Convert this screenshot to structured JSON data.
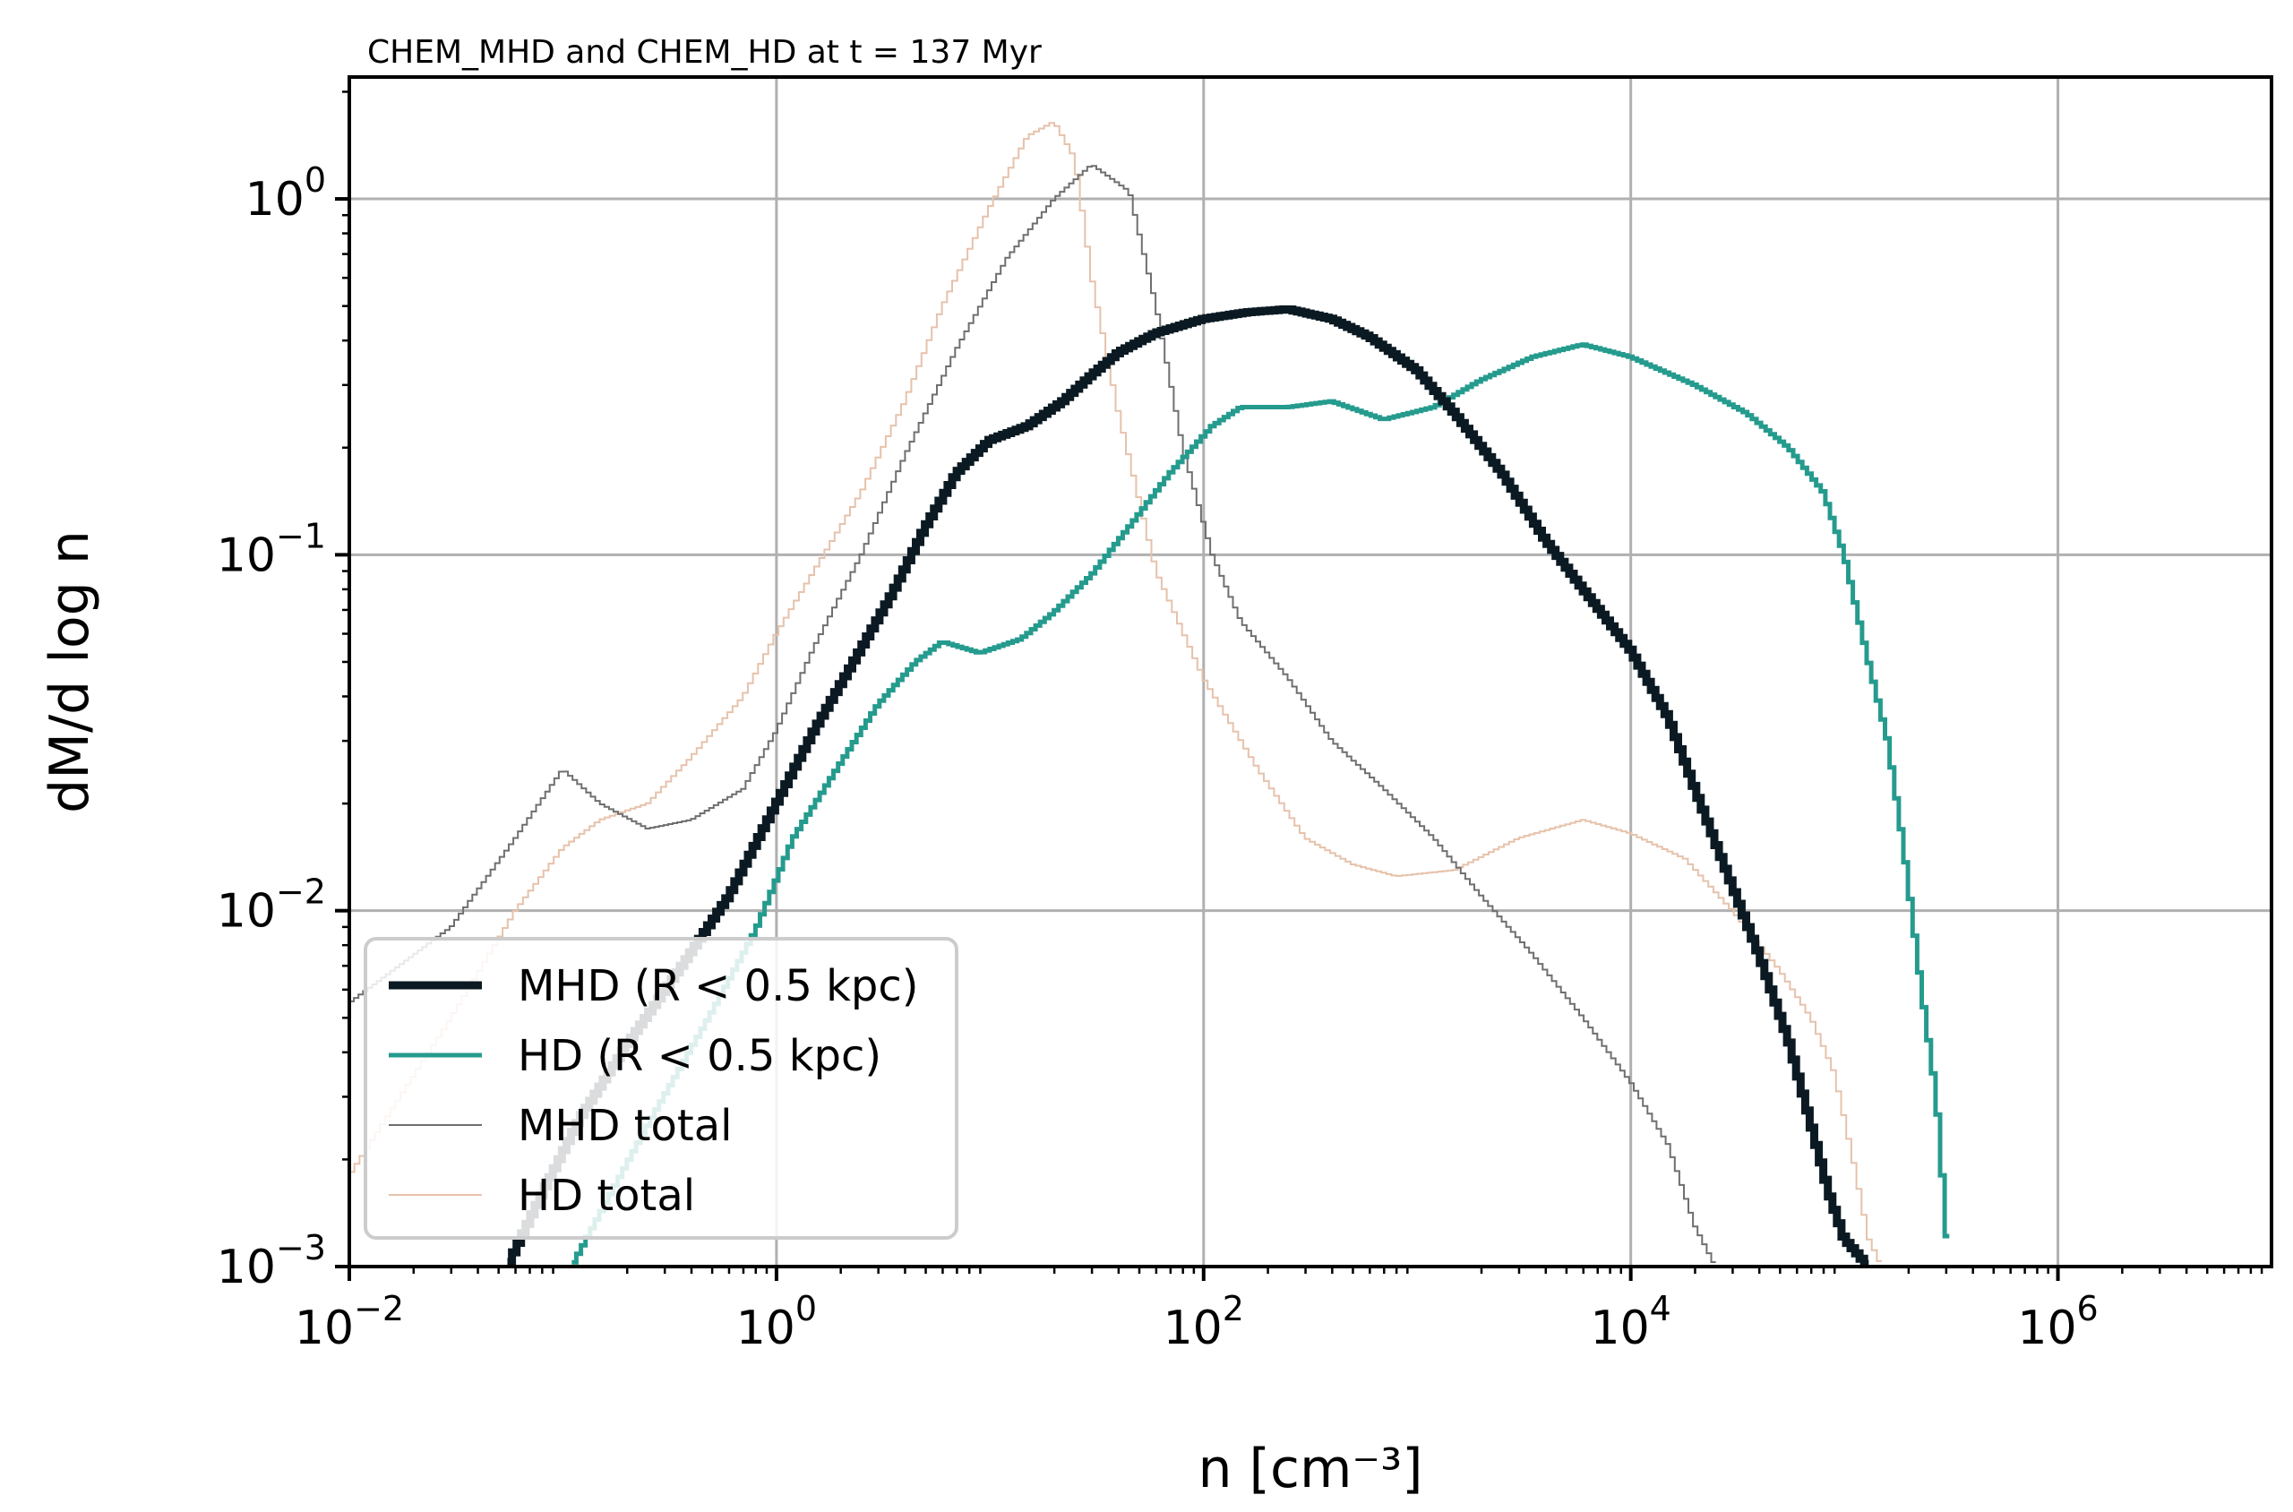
{
  "chart_data": {
    "type": "line",
    "title": "CHEM_MHD and CHEM_HD at t = 137 Myr",
    "xlabel": "n [cm⁻³]",
    "ylabel": "dM/d log n",
    "xscale": "log",
    "yscale": "log",
    "xlim": [
      0.01,
      10000000
    ],
    "ylim": [
      0.001,
      2.2
    ],
    "grid": true,
    "legend_position": "bottom-left",
    "x_ticks": [
      {
        "value": 0.01,
        "base": "10",
        "exp": "−2"
      },
      {
        "value": 1,
        "base": "10",
        "exp": "0"
      },
      {
        "value": 100,
        "base": "10",
        "exp": "2"
      },
      {
        "value": 10000,
        "base": "10",
        "exp": "4"
      },
      {
        "value": 1000000,
        "base": "10",
        "exp": "6"
      }
    ],
    "y_ticks": [
      {
        "value": 1,
        "base": "10",
        "exp": "0"
      },
      {
        "value": 0.1,
        "base": "10",
        "exp": "−1"
      },
      {
        "value": 0.01,
        "base": "10",
        "exp": "−2"
      },
      {
        "value": 0.001,
        "base": "10",
        "exp": "−3"
      }
    ],
    "series": [
      {
        "name": "MHD (R < 0.5 kpc)",
        "color": "#0b1a22",
        "points": [
          [
            0.055,
            0.001
          ],
          [
            0.08,
            0.0016
          ],
          [
            0.12,
            0.0026
          ],
          [
            0.2,
            0.0042
          ],
          [
            0.35,
            0.0068
          ],
          [
            0.6,
            0.011
          ],
          [
            1.0,
            0.02
          ],
          [
            1.5,
            0.032
          ],
          [
            2.3,
            0.05
          ],
          [
            3.5,
            0.078
          ],
          [
            5,
            0.12
          ],
          [
            7,
            0.17
          ],
          [
            10,
            0.21
          ],
          [
            15,
            0.23
          ],
          [
            22,
            0.27
          ],
          [
            30,
            0.32
          ],
          [
            40,
            0.37
          ],
          [
            60,
            0.42
          ],
          [
            100,
            0.46
          ],
          [
            160,
            0.48
          ],
          [
            250,
            0.49
          ],
          [
            400,
            0.46
          ],
          [
            600,
            0.41
          ],
          [
            1000,
            0.33
          ],
          [
            1500,
            0.25
          ],
          [
            2500,
            0.17
          ],
          [
            4000,
            0.11
          ],
          [
            6000,
            0.08
          ],
          [
            10000,
            0.054
          ],
          [
            15000,
            0.035
          ],
          [
            20000,
            0.022
          ],
          [
            28000,
            0.013
          ],
          [
            40000,
            0.0075
          ],
          [
            55000,
            0.0043
          ],
          [
            70000,
            0.0025
          ],
          [
            85000,
            0.0016
          ],
          [
            100000,
            0.0012
          ],
          [
            130000,
            0.001
          ]
        ]
      },
      {
        "name": "HD (R < 0.5 kpc)",
        "color": "#259b8e",
        "points": [
          [
            0.11,
            0.001
          ],
          [
            0.25,
            0.0025
          ],
          [
            0.5,
            0.0052
          ],
          [
            0.8,
            0.0088
          ],
          [
            1.2,
            0.016
          ],
          [
            2,
            0.026
          ],
          [
            3,
            0.038
          ],
          [
            4.5,
            0.05
          ],
          [
            6,
            0.057
          ],
          [
            9,
            0.053
          ],
          [
            14,
            0.058
          ],
          [
            20,
            0.069
          ],
          [
            30,
            0.088
          ],
          [
            45,
            0.12
          ],
          [
            70,
            0.17
          ],
          [
            110,
            0.23
          ],
          [
            150,
            0.26
          ],
          [
            250,
            0.26
          ],
          [
            400,
            0.27
          ],
          [
            700,
            0.24
          ],
          [
            1200,
            0.26
          ],
          [
            2000,
            0.31
          ],
          [
            3500,
            0.36
          ],
          [
            6000,
            0.39
          ],
          [
            10000,
            0.36
          ],
          [
            20000,
            0.3
          ],
          [
            35000,
            0.25
          ],
          [
            55000,
            0.2
          ],
          [
            80000,
            0.15
          ],
          [
            100000,
            0.1
          ],
          [
            130000,
            0.05
          ],
          [
            160000,
            0.03
          ],
          [
            190000,
            0.015
          ],
          [
            230000,
            0.006
          ],
          [
            270000,
            0.003
          ],
          [
            310000,
            0.001
          ]
        ]
      },
      {
        "name": "MHD total",
        "color": "#6f6f6f",
        "points": [
          [
            0.01,
            0.0055
          ],
          [
            0.03,
            0.009
          ],
          [
            0.06,
            0.016
          ],
          [
            0.1,
            0.025
          ],
          [
            0.15,
            0.02
          ],
          [
            0.25,
            0.017
          ],
          [
            0.4,
            0.018
          ],
          [
            0.7,
            0.022
          ],
          [
            1,
            0.032
          ],
          [
            1.5,
            0.055
          ],
          [
            2.5,
            0.1
          ],
          [
            4,
            0.19
          ],
          [
            7,
            0.38
          ],
          [
            12,
            0.68
          ],
          [
            20,
            1.0
          ],
          [
            30,
            1.25
          ],
          [
            45,
            1.05
          ],
          [
            60,
            0.5
          ],
          [
            80,
            0.2
          ],
          [
            110,
            0.1
          ],
          [
            150,
            0.065
          ],
          [
            250,
            0.045
          ],
          [
            400,
            0.03
          ],
          [
            700,
            0.022
          ],
          [
            1200,
            0.016
          ],
          [
            2000,
            0.011
          ],
          [
            3500,
            0.0075
          ],
          [
            6000,
            0.005
          ],
          [
            10000,
            0.0033
          ],
          [
            15000,
            0.0022
          ],
          [
            20000,
            0.0013
          ],
          [
            25000,
            0.001
          ]
        ]
      },
      {
        "name": "HD total",
        "color": "#e6c2ab",
        "points": [
          [
            0.01,
            0.0018
          ],
          [
            0.03,
            0.005
          ],
          [
            0.06,
            0.01
          ],
          [
            0.1,
            0.015
          ],
          [
            0.15,
            0.018
          ],
          [
            0.25,
            0.02
          ],
          [
            0.4,
            0.027
          ],
          [
            0.7,
            0.04
          ],
          [
            1,
            0.06
          ],
          [
            1.5,
            0.09
          ],
          [
            2.5,
            0.15
          ],
          [
            4,
            0.27
          ],
          [
            6,
            0.5
          ],
          [
            10,
            0.95
          ],
          [
            15,
            1.5
          ],
          [
            20,
            1.65
          ],
          [
            25,
            1.3
          ],
          [
            30,
            0.6
          ],
          [
            40,
            0.25
          ],
          [
            60,
            0.09
          ],
          [
            100,
            0.045
          ],
          [
            180,
            0.025
          ],
          [
            300,
            0.016
          ],
          [
            500,
            0.0135
          ],
          [
            800,
            0.0125
          ],
          [
            1500,
            0.013
          ],
          [
            3000,
            0.016
          ],
          [
            6000,
            0.018
          ],
          [
            10000,
            0.0165
          ],
          [
            18000,
            0.014
          ],
          [
            30000,
            0.01
          ],
          [
            50000,
            0.0068
          ],
          [
            70000,
            0.005
          ],
          [
            90000,
            0.0035
          ],
          [
            110000,
            0.002
          ],
          [
            130000,
            0.0012
          ],
          [
            150000,
            0.001
          ]
        ]
      }
    ]
  }
}
